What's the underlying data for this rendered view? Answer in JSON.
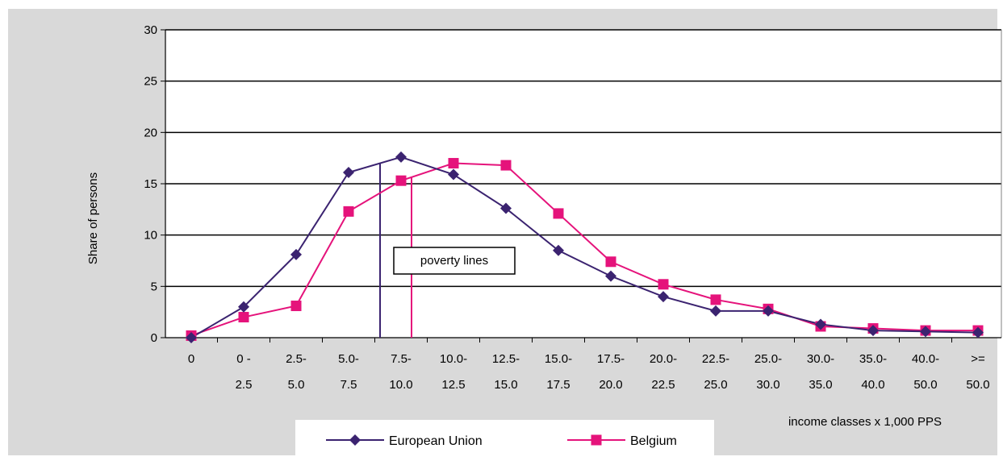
{
  "chart_data": {
    "type": "line",
    "ylabel": "Share of persons",
    "xlabel": "income classes x 1,000 PPS",
    "ylim": [
      0,
      30
    ],
    "yticks": [
      0,
      5,
      10,
      15,
      20,
      25,
      30
    ],
    "grid": true,
    "legend_position": "bottom",
    "categories": [
      [
        "0",
        ""
      ],
      [
        "0 -",
        "2.5"
      ],
      [
        "2.5-",
        "5.0"
      ],
      [
        "5.0-",
        "7.5"
      ],
      [
        "7.5-",
        "10.0"
      ],
      [
        "10.0-",
        "12.5"
      ],
      [
        "12.5-",
        "15.0"
      ],
      [
        "15.0-",
        "17.5"
      ],
      [
        "17.5-",
        "20.0"
      ],
      [
        "20.0-",
        "22.5"
      ],
      [
        "22.5-",
        "25.0"
      ],
      [
        "25.0-",
        "30.0"
      ],
      [
        "30.0-",
        "35.0"
      ],
      [
        "35.0-",
        "40.0"
      ],
      [
        "40.0-",
        "50.0"
      ],
      [
        ">=",
        "50.0"
      ]
    ],
    "series": [
      {
        "name": "European Union",
        "color": "#3b2370",
        "marker": "diamond",
        "values": [
          0,
          3.0,
          8.1,
          16.1,
          17.6,
          15.9,
          12.6,
          8.5,
          6.0,
          4.0,
          2.6,
          2.6,
          1.3,
          0.7,
          0.6,
          0.5
        ]
      },
      {
        "name": "Belgium",
        "color": "#e5137b",
        "marker": "square",
        "values": [
          0.2,
          2.0,
          3.1,
          12.3,
          15.3,
          17.0,
          16.8,
          12.1,
          7.4,
          5.2,
          3.7,
          2.8,
          1.1,
          0.9,
          0.7,
          0.7
        ]
      }
    ],
    "poverty_lines": [
      {
        "series": "European Union",
        "x_category_position": 3.6,
        "color": "#3b2370"
      },
      {
        "series": "Belgium",
        "x_category_position": 4.2,
        "color": "#e5137b"
      }
    ],
    "annotation": "poverty lines"
  },
  "colors": {
    "outer_background": "#d9d9d9",
    "plot_background": "#ffffff",
    "gridline": "#000000"
  }
}
